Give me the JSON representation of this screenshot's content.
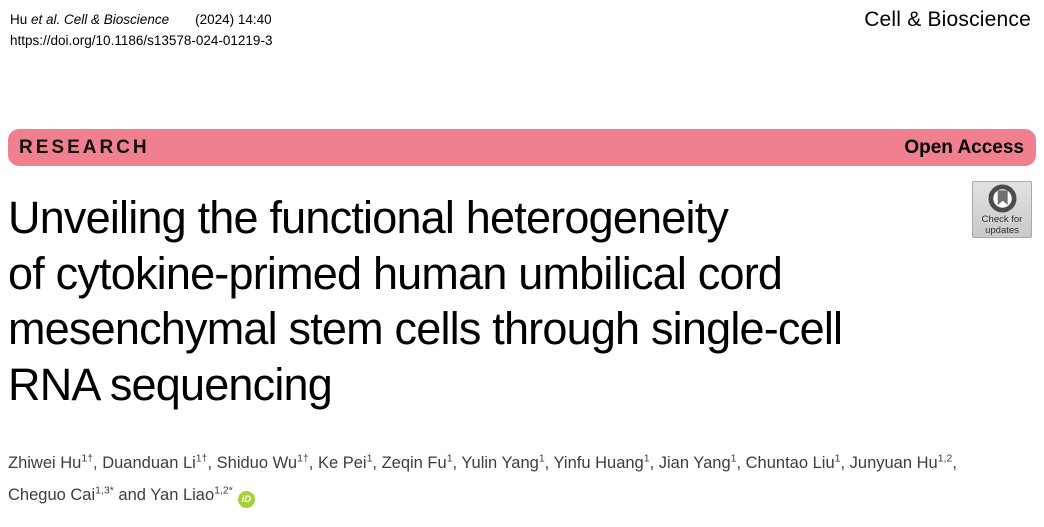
{
  "masthead": {
    "citation_author": "Hu ",
    "citation_source": "et al. Cell & Bioscience",
    "citation_issue": "(2024) 14:40",
    "doi": "https://doi.org/10.1186/s13578-024-01219-3",
    "journal_name": "Cell & Bioscience"
  },
  "banner": {
    "left_label": "RESEARCH",
    "right_label": "Open Access",
    "color": "#F0808F"
  },
  "crossmark_badge": {
    "line1": "Check for",
    "line2": "updates"
  },
  "title_lines": [
    "Unveiling the functional heterogeneity",
    "of cytokine-primed human umbilical cord",
    "mesenchymal stem cells through single-cell",
    "RNA sequencing"
  ],
  "authors": [
    {
      "name": "Zhiwei Hu",
      "sup": "1†"
    },
    {
      "name": "Duanduan Li",
      "sup": "1†"
    },
    {
      "name": "Shiduo Wu",
      "sup": "1†"
    },
    {
      "name": "Ke Pei",
      "sup": "1"
    },
    {
      "name": "Zeqin Fu",
      "sup": "1"
    },
    {
      "name": "Yulin Yang",
      "sup": "1"
    },
    {
      "name": "Yinfu Huang",
      "sup": "1"
    },
    {
      "name": "Jian Yang",
      "sup": "1"
    },
    {
      "name": "Chuntao Liu",
      "sup": "1"
    },
    {
      "name": "Junyuan Hu",
      "sup": "1,2"
    },
    {
      "name": "Cheguo Cai",
      "sup": "1,3*"
    },
    {
      "name": "Yan Liao",
      "sup": "1,2*"
    }
  ],
  "authors_last_conjunction": "and",
  "orcid_icon": {
    "label": "iD",
    "color": "#A6CE39"
  }
}
